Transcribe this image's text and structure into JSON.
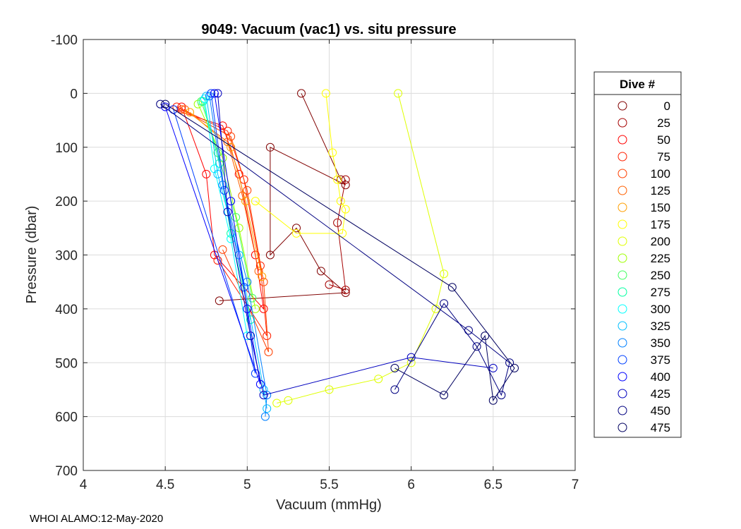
{
  "chart_data": {
    "type": "scatter",
    "title": "9049: Vacuum (vac1) vs. situ pressure",
    "xlabel": "Vacuum (mmHg)",
    "ylabel": "Pressure (dbar)",
    "xlim": [
      4,
      7
    ],
    "ylim": [
      -100,
      700
    ],
    "y_reversed": true,
    "grid": true,
    "x_ticks": [
      4,
      4.5,
      5,
      5.5,
      6,
      6.5,
      7
    ],
    "x_tick_labels": [
      "4",
      "4.5",
      "5",
      "5.5",
      "6",
      "6.5",
      "7"
    ],
    "y_ticks": [
      -100,
      0,
      100,
      200,
      300,
      400,
      500,
      600,
      700
    ],
    "y_tick_labels": [
      "-100",
      "0",
      "100",
      "200",
      "300",
      "400",
      "500",
      "600",
      "700"
    ],
    "legend_title": "Dive #",
    "legend_position": "outside-right",
    "series": [
      {
        "name": "0",
        "color": "#800000",
        "points": [
          [
            5.33,
            0
          ],
          [
            5.57,
            160
          ],
          [
            5.6,
            170
          ],
          [
            5.14,
            100
          ],
          [
            5.14,
            300
          ],
          [
            5.3,
            250
          ],
          [
            5.45,
            330
          ],
          [
            5.6,
            370
          ],
          [
            4.83,
            385
          ]
        ]
      },
      {
        "name": "25",
        "color": "#a50000",
        "points": [
          [
            5.6,
            160
          ],
          [
            5.55,
            240
          ],
          [
            5.6,
            365
          ],
          [
            5.5,
            355
          ]
        ]
      },
      {
        "name": "50",
        "color": "#ff0000",
        "points": [
          [
            4.55,
            30
          ],
          [
            4.85,
            60
          ],
          [
            4.95,
            150
          ],
          [
            5.05,
            300
          ],
          [
            5.1,
            400
          ],
          [
            4.8,
            300
          ],
          [
            4.75,
            150
          ],
          [
            4.6,
            25
          ]
        ]
      },
      {
        "name": "75",
        "color": "#ff2000",
        "points": [
          [
            4.57,
            25
          ],
          [
            4.88,
            70
          ],
          [
            4.98,
            160
          ],
          [
            5.08,
            320
          ],
          [
            5.12,
            450
          ],
          [
            4.82,
            310
          ]
        ]
      },
      {
        "name": "100",
        "color": "#ff4000",
        "points": [
          [
            4.6,
            30
          ],
          [
            4.9,
            80
          ],
          [
            5.0,
            180
          ],
          [
            5.1,
            350
          ],
          [
            5.13,
            480
          ],
          [
            4.85,
            290
          ]
        ]
      },
      {
        "name": "125",
        "color": "#ff6000",
        "points": [
          [
            4.62,
            30
          ],
          [
            4.88,
            90
          ],
          [
            4.97,
            190
          ],
          [
            5.07,
            330
          ]
        ]
      },
      {
        "name": "150",
        "color": "#ff9f00",
        "points": [
          [
            4.65,
            35
          ],
          [
            4.9,
            100
          ],
          [
            4.99,
            200
          ],
          [
            5.09,
            340
          ]
        ]
      },
      {
        "name": "175",
        "color": "#ffff00",
        "points": [
          [
            5.48,
            0
          ],
          [
            5.52,
            110
          ],
          [
            5.55,
            160
          ],
          [
            5.57,
            200
          ],
          [
            5.6,
            215
          ],
          [
            5.58,
            260
          ],
          [
            5.3,
            260
          ],
          [
            5.05,
            200
          ]
        ]
      },
      {
        "name": "200",
        "color": "#dfff00",
        "points": [
          [
            5.92,
            0
          ],
          [
            6.2,
            335
          ],
          [
            6.15,
            400
          ],
          [
            6.0,
            500
          ],
          [
            5.8,
            530
          ],
          [
            5.5,
            550
          ],
          [
            5.25,
            570
          ],
          [
            5.18,
            575
          ]
        ]
      },
      {
        "name": "225",
        "color": "#9fff00",
        "points": [
          [
            4.7,
            20
          ],
          [
            4.85,
            120
          ],
          [
            4.95,
            250
          ],
          [
            5.05,
            400
          ]
        ]
      },
      {
        "name": "250",
        "color": "#40ff60",
        "points": [
          [
            4.72,
            15
          ],
          [
            4.82,
            110
          ],
          [
            4.93,
            230
          ],
          [
            5.03,
            380
          ]
        ]
      },
      {
        "name": "275",
        "color": "#00ffa0",
        "points": [
          [
            4.73,
            15
          ],
          [
            4.83,
            130
          ],
          [
            4.9,
            260
          ],
          [
            5.02,
            420
          ]
        ]
      },
      {
        "name": "300",
        "color": "#00ffff",
        "points": [
          [
            4.74,
            10
          ],
          [
            4.8,
            140
          ],
          [
            4.9,
            270
          ],
          [
            5.0,
            450
          ]
        ]
      },
      {
        "name": "325",
        "color": "#00bfff",
        "points": [
          [
            4.75,
            5
          ],
          [
            4.82,
            150
          ],
          [
            4.95,
            300
          ],
          [
            5.1,
            550
          ],
          [
            5.12,
            585
          ]
        ]
      },
      {
        "name": "350",
        "color": "#0080ff",
        "points": [
          [
            4.77,
            5
          ],
          [
            4.85,
            170
          ],
          [
            5.0,
            350
          ],
          [
            5.12,
            560
          ],
          [
            5.11,
            600
          ]
        ]
      },
      {
        "name": "375",
        "color": "#0040ff",
        "points": [
          [
            4.78,
            0
          ],
          [
            4.86,
            180
          ],
          [
            4.98,
            360
          ],
          [
            5.05,
            520
          ],
          [
            4.55,
            30
          ]
        ]
      },
      {
        "name": "400",
        "color": "#0000ff",
        "points": [
          [
            4.8,
            0
          ],
          [
            4.9,
            200
          ],
          [
            5.0,
            400
          ],
          [
            5.08,
            540
          ],
          [
            4.5,
            25
          ]
        ]
      },
      {
        "name": "425",
        "color": "#0000bf",
        "points": [
          [
            4.82,
            0
          ],
          [
            4.88,
            220
          ],
          [
            5.02,
            450
          ],
          [
            5.1,
            560
          ],
          [
            6.0,
            490
          ],
          [
            6.5,
            510
          ]
        ]
      },
      {
        "name": "450",
        "color": "#000080",
        "points": [
          [
            4.47,
            20
          ],
          [
            6.35,
            440
          ],
          [
            6.6,
            500
          ],
          [
            6.55,
            560
          ],
          [
            6.4,
            470
          ],
          [
            6.2,
            390
          ],
          [
            5.9,
            550
          ]
        ]
      },
      {
        "name": "475",
        "color": "#000060",
        "points": [
          [
            4.5,
            20
          ],
          [
            6.25,
            360
          ],
          [
            6.63,
            510
          ],
          [
            6.5,
            570
          ],
          [
            6.45,
            450
          ],
          [
            6.2,
            560
          ],
          [
            5.9,
            510
          ]
        ]
      }
    ]
  },
  "footer": {
    "text": "WHOI ALAMO:12-May-2020"
  }
}
